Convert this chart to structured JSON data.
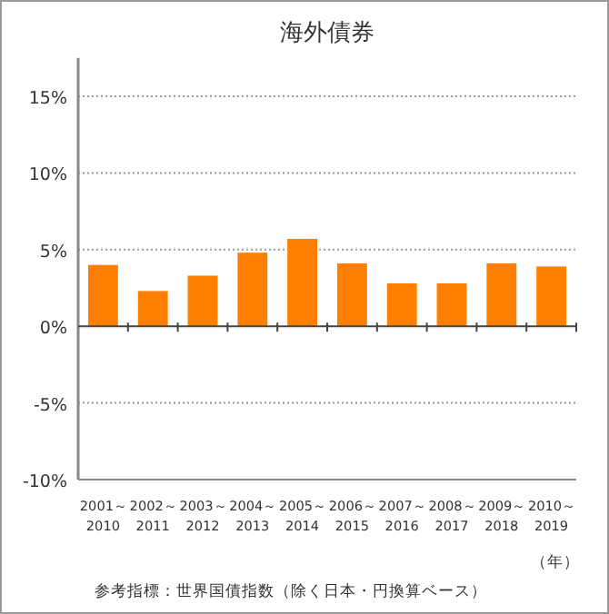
{
  "chart_data": {
    "type": "bar",
    "title": "海外債券",
    "xlabel": "（年）",
    "categories": [
      "2001～\n2010",
      "2002～\n2011",
      "2003～\n2012",
      "2004～\n2013",
      "2005～\n2014",
      "2006～\n2015",
      "2007～\n2016",
      "2008～\n2017",
      "2009～\n2018",
      "2010～\n2019"
    ],
    "values": [
      4.0,
      2.3,
      3.3,
      4.8,
      5.7,
      4.1,
      2.8,
      2.8,
      4.1,
      3.9
    ],
    "color": "#ff8000",
    "ylim": [
      -10,
      17.5
    ],
    "yticks": [
      {
        "value": -10,
        "label": "-10%"
      },
      {
        "value": -5,
        "label": "-5%"
      },
      {
        "value": 0,
        "label": "0%"
      },
      {
        "value": 5,
        "label": "5%"
      },
      {
        "value": 10,
        "label": "10%"
      },
      {
        "value": 15,
        "label": "15%"
      }
    ],
    "grid": "y",
    "annotations": [
      "参考指標：世界国債指数（除く日本・円換算ベース）"
    ]
  }
}
